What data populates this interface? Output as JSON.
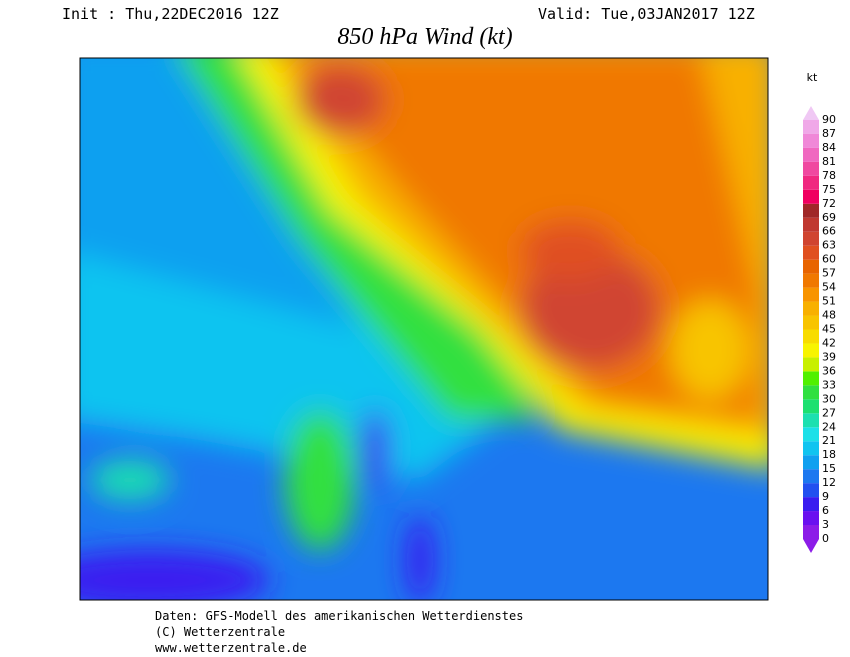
{
  "header": {
    "init": "Init : Thu,22DEC2016 12Z",
    "valid": "Valid: Tue,03JAN2017 12Z",
    "title": "850 hPa Wind (kt)"
  },
  "colorbar": {
    "unit": "kt",
    "levels": [
      0,
      3,
      6,
      9,
      12,
      15,
      18,
      21,
      24,
      27,
      30,
      33,
      36,
      39,
      42,
      45,
      48,
      51,
      54,
      57,
      60,
      63,
      66,
      69,
      72,
      75,
      78,
      81,
      84,
      87,
      90
    ],
    "colors": [
      "#8c1ce8",
      "#6a10f0",
      "#3a1cf0",
      "#2250f0",
      "#1c78f0",
      "#10a0f0",
      "#10c4f0",
      "#1ce0e8",
      "#1ce0b0",
      "#1ce070",
      "#30e040",
      "#50f000",
      "#c8f000",
      "#f8f400",
      "#f8dc00",
      "#f8c400",
      "#f8b000",
      "#f89400",
      "#f07800",
      "#e86400",
      "#e05020",
      "#d04430",
      "#c03830",
      "#a02828",
      "#f00060",
      "#f02880",
      "#f048a0",
      "#f068c0",
      "#f088d8",
      "#f0a8e8",
      "#f0c8f4"
    ]
  },
  "footer": {
    "line1": "Daten: GFS-Modell des amerikanischen Wetterdienstes",
    "line2": "(C) Wetterzentrale",
    "line3": "www.wetterzentrale.de"
  }
}
